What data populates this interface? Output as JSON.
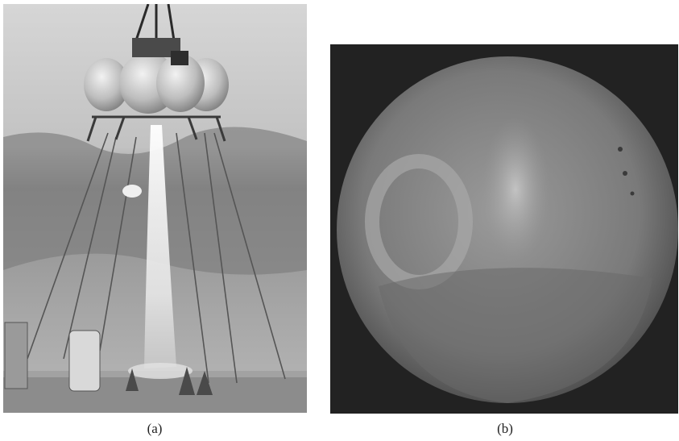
{
  "figure": {
    "panels": [
      {
        "caption": "(a)",
        "content": "photograph-of-lander-test-flight"
      },
      {
        "caption": "(b)",
        "content": "photograph-of-mars"
      }
    ],
    "colors": {
      "background": "#ffffff",
      "sky": "#b9b9b9",
      "ground": "#8c8c8c",
      "planet": "#7a7a7a",
      "space": "#222222"
    }
  }
}
